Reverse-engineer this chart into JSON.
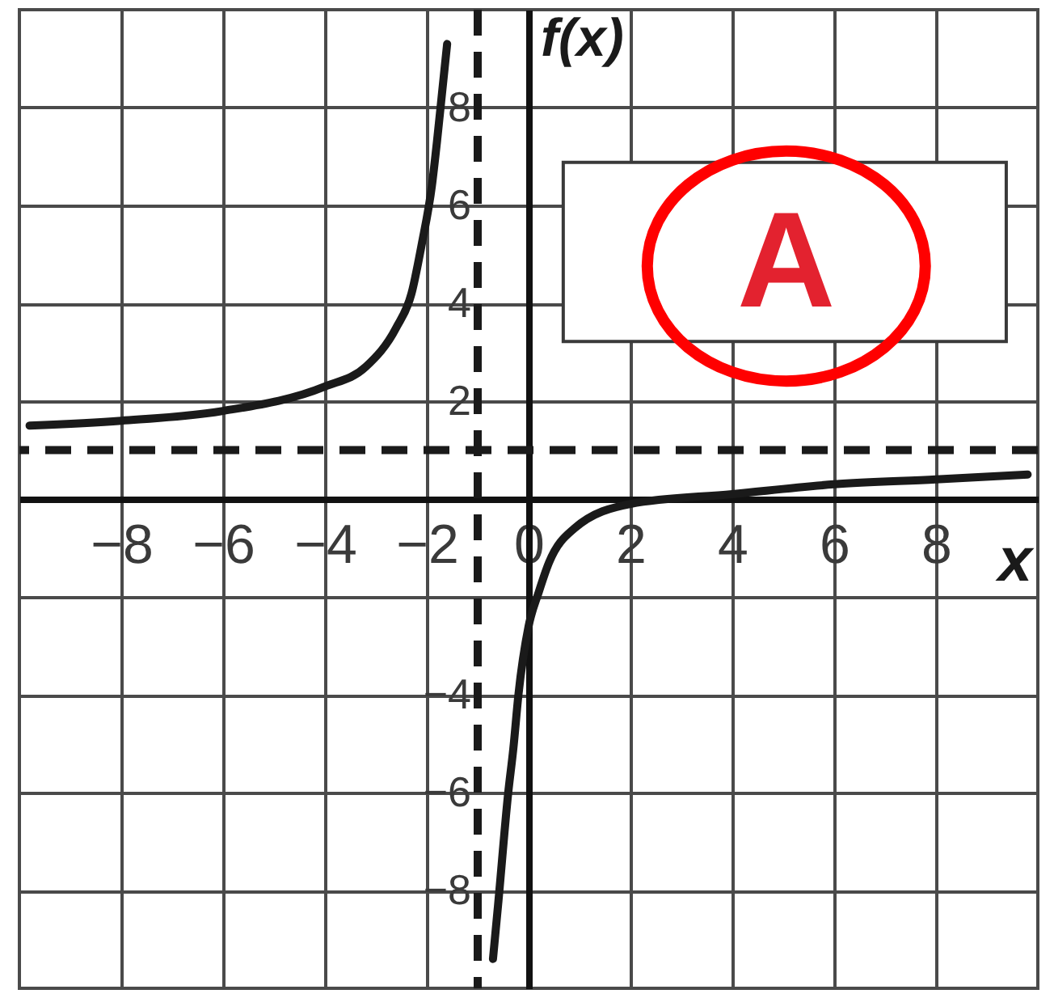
{
  "chart_data": {
    "type": "line",
    "xlabel": "x",
    "ylabel": "f(x)",
    "xlim": [
      -10,
      10
    ],
    "ylim": [
      -10,
      10
    ],
    "xticks": [
      -8,
      -6,
      -4,
      -2,
      0,
      2,
      4,
      6,
      8
    ],
    "yticks": [
      -8,
      -6,
      -4,
      {
        "value": -2,
        "label": null
      },
      2,
      4,
      6,
      8
    ],
    "grid": true,
    "series": [
      {
        "color": "#1a1a1a",
        "x": [
          -9.8,
          -8,
          -6,
          -4,
          -3.2,
          -2.6,
          -2.3,
          -2.1,
          -1.9,
          -1.8,
          -1.7,
          -1.6
        ],
        "values": [
          1.5,
          1.6,
          1.8,
          2.3,
          2.7,
          3.5,
          4.2,
          5.2,
          6.4,
          7.3,
          8.3,
          9.3
        ]
      },
      {
        "color": "#1a1a1a",
        "x": [
          -0.7,
          -0.6,
          -0.4,
          -0.3,
          -0.2,
          0,
          0.2,
          0.4,
          0.9,
          2,
          4,
          6,
          8,
          9.8
        ],
        "values": [
          -9.4,
          -8.3,
          -6,
          -5.1,
          -4,
          -2.6,
          -1.9,
          -1.3,
          -0.6,
          -0.1,
          0.1,
          0.3,
          0.4,
          0.5
        ]
      }
    ],
    "ref_lines": [
      {
        "axis": "x",
        "value": -1,
        "line_style": "dashed"
      },
      {
        "axis": "y",
        "value": 1,
        "line_style": "dashed"
      }
    ],
    "annotations": [
      "A"
    ]
  }
}
